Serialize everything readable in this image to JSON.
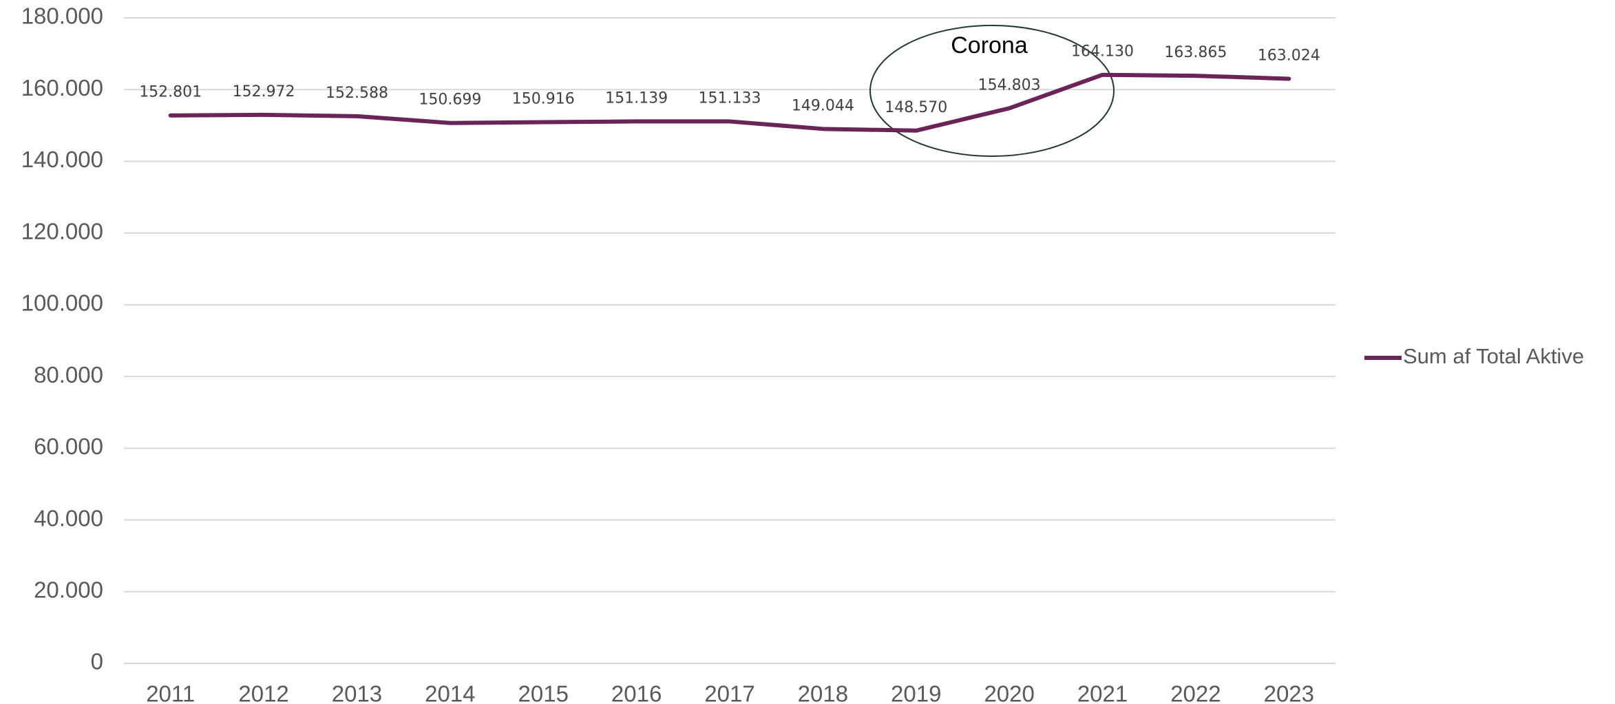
{
  "chart_data": {
    "type": "line",
    "categories": [
      "2011",
      "2012",
      "2013",
      "2014",
      "2015",
      "2016",
      "2017",
      "2018",
      "2019",
      "2020",
      "2021",
      "2022",
      "2023"
    ],
    "series": [
      {
        "name": "Sum af Total Aktive",
        "color": "#6b2458",
        "values": [
          152801,
          152972,
          152588,
          150699,
          150916,
          151139,
          151133,
          149044,
          148570,
          154803,
          164130,
          163865,
          163024
        ],
        "value_labels": [
          "152.801",
          "152.972",
          "152.588",
          "150.699",
          "150.916",
          "151.139",
          "151.133",
          "149.044",
          "148.570",
          "154.803",
          "164.130",
          "163.865",
          "163.024"
        ]
      }
    ],
    "ylim": [
      0,
      180000
    ],
    "yticks": [
      0,
      {
        "value": 20000,
        "label": "20.000"
      },
      {
        "value": 40000,
        "label": "40.000"
      },
      {
        "value": 60000,
        "label": "60.000"
      },
      {
        "value": 80000,
        "label": "80.000"
      },
      {
        "value": 100000,
        "label": "100.000"
      },
      {
        "value": 120000,
        "label": "120.000"
      },
      {
        "value": 140000,
        "label": "140.000"
      },
      {
        "value": 160000,
        "label": "160.000"
      },
      {
        "value": 180000,
        "label": "180.000"
      }
    ],
    "grid": true,
    "legend": "right",
    "annotation": "Corona"
  }
}
